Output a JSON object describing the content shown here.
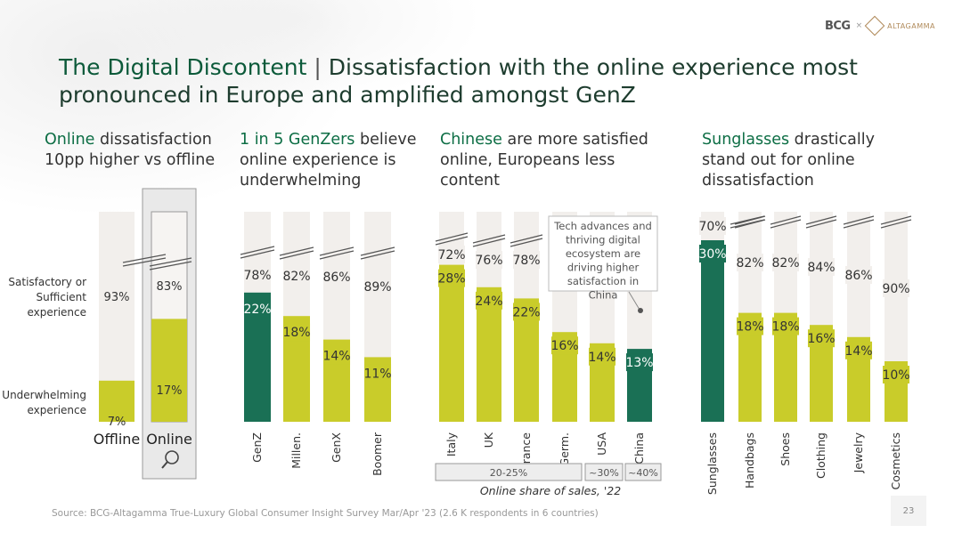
{
  "logo": {
    "brand1": "BCG",
    "separator": "×",
    "brand2": "ALTAGAMMA"
  },
  "title": {
    "emphasis": "The Digital Discontent",
    "separator": "|",
    "rest": "Dissatisfaction with the online experience most pronounced in Europe and amplified amongst GenZ"
  },
  "subheads": [
    {
      "emphasis": "Online",
      "rest": " dissatisfaction 10pp higher vs offline"
    },
    {
      "emphasis": "1 in 5 GenZers",
      "rest": " believe online experience is underwhelming"
    },
    {
      "emphasis": "Chinese",
      "rest": " are more satisfied online, Europeans less content"
    },
    {
      "emphasis": "Sunglasses",
      "rest": " drastically stand out for online dissatisfaction"
    }
  ],
  "colors": {
    "lime": "#c9cc2a",
    "dark_green": "#1a7055",
    "light_bg": "#f2efec",
    "text": "#333333"
  },
  "chart_data": [
    {
      "type": "bar",
      "stacked": true,
      "categories": [
        "Offline",
        "Online"
      ],
      "series": [
        {
          "name": "Underwhelming experience",
          "values": [
            7,
            17
          ]
        },
        {
          "name": "Satisfactory or Sufficient experience",
          "values": [
            93,
            83
          ]
        }
      ],
      "series_labels": [
        "Underwhelming\nexperience",
        "Satisfactory or\nSufficient\nexperience"
      ],
      "highlight": "Online",
      "highlight_icon": "magnifier-icon"
    },
    {
      "type": "bar",
      "stacked": true,
      "categories": [
        "GenZ",
        "Millen.",
        "GenX",
        "Boomer"
      ],
      "series": [
        {
          "values": [
            22,
            18,
            14,
            11
          ]
        },
        {
          "values": [
            78,
            82,
            86,
            89
          ]
        }
      ],
      "highlight": "GenZ"
    },
    {
      "type": "bar",
      "stacked": true,
      "categories": [
        "Italy",
        "UK",
        "France",
        "Germ.",
        "USA",
        "China"
      ],
      "series": [
        {
          "values": [
            28,
            24,
            22,
            16,
            14,
            13
          ]
        },
        {
          "values": [
            72,
            76,
            78,
            null,
            null,
            null
          ]
        }
      ],
      "highlight": "China",
      "annotation": "Tech advances and thriving digital ecosystem are driving higher satisfaction in China",
      "online_share_of_sales": {
        "label": "Online share of sales, '22",
        "groups": [
          {
            "label": "20-25%",
            "categories": [
              "Italy",
              "UK",
              "France",
              "Germ."
            ]
          },
          {
            "label": "~30%",
            "categories": [
              "USA"
            ]
          },
          {
            "label": "~40%",
            "categories": [
              "China"
            ]
          }
        ]
      }
    },
    {
      "type": "bar",
      "stacked": true,
      "categories": [
        "Sunglasses",
        "Handbags",
        "Shoes",
        "Clothing",
        "Jewelry",
        "Cosmetics"
      ],
      "series": [
        {
          "values": [
            30,
            18,
            18,
            16,
            14,
            10
          ]
        },
        {
          "values": [
            70,
            82,
            82,
            84,
            86,
            90
          ]
        }
      ],
      "highlight": "Sunglasses"
    }
  ],
  "footer": {
    "source": "Source: BCG-Altagamma True-Luxury Global Consumer Insight Survey Mar/Apr '23 (2.6 K respondents in 6 countries)",
    "page_number": "23"
  }
}
